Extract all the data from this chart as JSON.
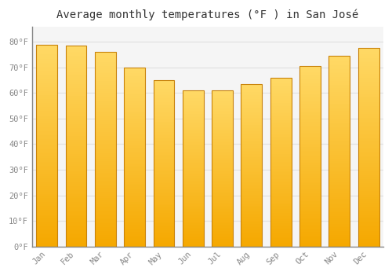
{
  "title": "Average monthly temperatures (°F ) in San José",
  "months": [
    "Jan",
    "Feb",
    "Mar",
    "Apr",
    "May",
    "Jun",
    "Jul",
    "Aug",
    "Sep",
    "Oct",
    "Nov",
    "Dec"
  ],
  "values": [
    79,
    78.5,
    76,
    70,
    65,
    61,
    61,
    63.5,
    66,
    70.5,
    74.5,
    77.5
  ],
  "bar_color_bottom": "#F5A800",
  "bar_color_top": "#FFD966",
  "bar_edge_color": "#C8820A",
  "yticks": [
    0,
    10,
    20,
    30,
    40,
    50,
    60,
    70,
    80
  ],
  "ytick_labels": [
    "0°F",
    "10°F",
    "20°F",
    "30°F",
    "40°F",
    "50°F",
    "60°F",
    "70°F",
    "80°F"
  ],
  "ylim": [
    0,
    86
  ],
  "background_color": "#FFFFFF",
  "plot_bg_color": "#F5F5F5",
  "grid_color": "#E0E0E0",
  "title_fontsize": 10,
  "tick_fontsize": 7.5,
  "tick_color": "#888888",
  "font_family": "monospace"
}
